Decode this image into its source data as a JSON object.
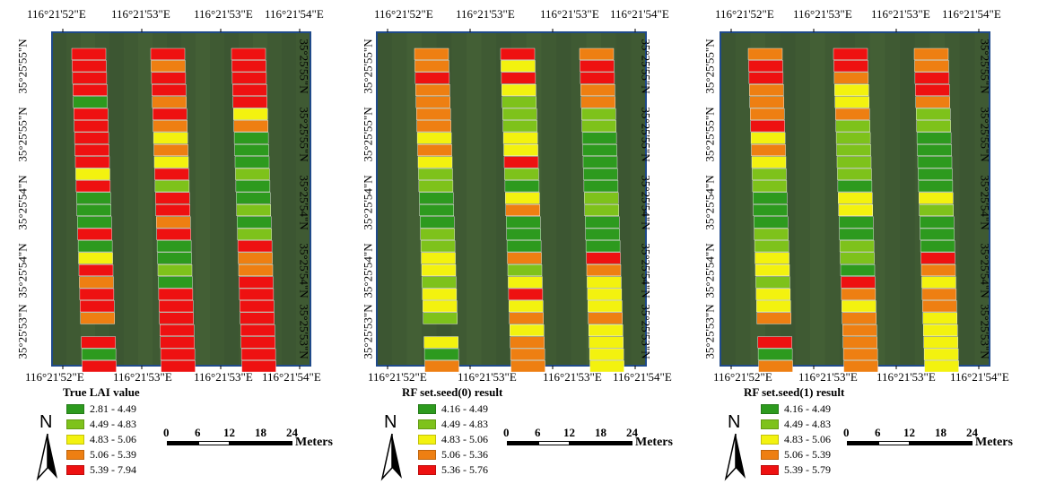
{
  "colors": {
    "green": "#2d9a1e",
    "lightgreen": "#7ec21b",
    "yellow": "#f3f20f",
    "orange": "#ee7f12",
    "red": "#ee1111",
    "background": "#3f5a33",
    "frame": "#1f4a8a"
  },
  "icons": {
    "north_arrow": "north-arrow-icon"
  },
  "panels": [
    {
      "caption": "True LAI value",
      "top_labels": [
        "116°21'52\"E",
        "116°21'53\"E",
        "116°21'53\"E",
        "116°21'54\"E"
      ],
      "bottom_labels": [
        "116°21'52\"E",
        "116°21'53\"E",
        "116°21'53\"E",
        "116°21'54\"E"
      ],
      "left_labels": [
        "35°25'55\"N",
        "35°25'55\"N",
        "35°25'54\"N",
        "35°25'54\"N",
        "35°25'53\"N"
      ],
      "right_labels": [
        "35°25'55\"N",
        "35°25'55\"N",
        "35°25'54\"N",
        "35°25'54\"N",
        "35°25'53\"N"
      ],
      "north_label": "N",
      "legend": [
        {
          "label": "2.81 - 4.49",
          "color": "green"
        },
        {
          "label": "4.49 - 4.83",
          "color": "lightgreen"
        },
        {
          "label": "4.83 - 5.06",
          "color": "yellow"
        },
        {
          "label": "5.06 - 5.39",
          "color": "orange"
        },
        {
          "label": "5.39 - 7.94",
          "color": "red"
        }
      ],
      "scale": {
        "ticks": [
          "0",
          "6",
          "12",
          "18",
          "24"
        ],
        "unit": "Meters"
      },
      "strips": [
        [
          "R",
          "R",
          "R",
          "R",
          "G",
          "R",
          "R",
          "R",
          "R",
          "R",
          "Y",
          "R",
          "G",
          "G",
          "G",
          "R",
          "G",
          "Y",
          "R",
          "O",
          "R",
          "R",
          "O",
          "",
          "R",
          "G",
          "R"
        ],
        [
          "R",
          "O",
          "R",
          "R",
          "O",
          "R",
          "O",
          "Y",
          "O",
          "Y",
          "R",
          "L",
          "R",
          "R",
          "O",
          "R",
          "G",
          "G",
          "L",
          "G",
          "R",
          "R",
          "R",
          "R",
          "R",
          "R",
          "R"
        ],
        [
          "R",
          "R",
          "R",
          "R",
          "R",
          "Y",
          "O",
          "G",
          "G",
          "G",
          "L",
          "G",
          "G",
          "L",
          "G",
          "L",
          "R",
          "O",
          "O",
          "R",
          "R",
          "R",
          "R",
          "R",
          "R",
          "R",
          "R"
        ]
      ]
    },
    {
      "caption": "RF set.seed(0) result",
      "top_labels": [
        "116°21'52\"E",
        "116°21'53\"E",
        "116°21'53\"E",
        "116°21'54\"E"
      ],
      "bottom_labels": [
        "116°21'52\"E",
        "116°21'53\"E",
        "116°21'53\"E",
        "116°21'54\"E"
      ],
      "left_labels": [
        "35°25'55\"N",
        "35°25'55\"N",
        "35°25'54\"N",
        "35°25'54\"N",
        "35°25'53\"N"
      ],
      "right_labels": [
        "35°25'55\"N",
        "35°25'55\"N",
        "35°25'54\"N",
        "35°25'54\"N",
        "35°25'53\"N"
      ],
      "north_label": "N",
      "legend": [
        {
          "label": "4.16 - 4.49",
          "color": "green"
        },
        {
          "label": "4.49 - 4.83",
          "color": "lightgreen"
        },
        {
          "label": "4.83 - 5.06",
          "color": "yellow"
        },
        {
          "label": "5.06 - 5.36",
          "color": "orange"
        },
        {
          "label": "5.36 - 5.76",
          "color": "red"
        }
      ],
      "scale": {
        "ticks": [
          "0",
          "6",
          "12",
          "18",
          "24"
        ],
        "unit": "Meters"
      },
      "strips": [
        [
          "O",
          "O",
          "R",
          "O",
          "O",
          "O",
          "O",
          "Y",
          "O",
          "Y",
          "L",
          "L",
          "G",
          "G",
          "G",
          "L",
          "L",
          "Y",
          "Y",
          "L",
          "Y",
          "Y",
          "L",
          "",
          "Y",
          "G",
          "O"
        ],
        [
          "R",
          "Y",
          "R",
          "Y",
          "L",
          "L",
          "L",
          "Y",
          "Y",
          "R",
          "L",
          "G",
          "Y",
          "O",
          "G",
          "G",
          "G",
          "O",
          "L",
          "Y",
          "R",
          "Y",
          "O",
          "Y",
          "O",
          "O",
          "O"
        ],
        [
          "O",
          "R",
          "R",
          "O",
          "O",
          "L",
          "L",
          "G",
          "G",
          "G",
          "G",
          "G",
          "L",
          "L",
          "G",
          "G",
          "G",
          "R",
          "O",
          "Y",
          "Y",
          "Y",
          "O",
          "Y",
          "Y",
          "Y",
          "Y"
        ]
      ]
    },
    {
      "caption": "RF set.seed(1) result",
      "top_labels": [
        "116°21'52\"E",
        "116°21'53\"E",
        "116°21'53\"E",
        "116°21'54\"E"
      ],
      "bottom_labels": [
        "116°21'52\"E",
        "116°21'53\"E",
        "116°21'53\"E",
        "116°21'54\"E"
      ],
      "left_labels": [
        "35°25'55\"N",
        "35°25'55\"N",
        "35°25'54\"N",
        "35°25'54\"N",
        "35°25'53\"N"
      ],
      "right_labels": [
        "35°25'55\"N",
        "35°25'55\"N",
        "35°25'54\"N",
        "35°25'54\"N",
        "35°25'53\"N"
      ],
      "north_label": "N",
      "legend": [
        {
          "label": "4.16 - 4.49",
          "color": "green"
        },
        {
          "label": "4.49 - 4.83",
          "color": "lightgreen"
        },
        {
          "label": "4.83 - 5.06",
          "color": "yellow"
        },
        {
          "label": "5.06 - 5.39",
          "color": "orange"
        },
        {
          "label": "5.39 - 5.79",
          "color": "red"
        }
      ],
      "scale": {
        "ticks": [
          "0",
          "6",
          "12",
          "18",
          "24"
        ],
        "unit": "Meters"
      },
      "strips": [
        [
          "O",
          "R",
          "R",
          "O",
          "O",
          "O",
          "R",
          "Y",
          "O",
          "Y",
          "L",
          "L",
          "G",
          "G",
          "G",
          "L",
          "L",
          "Y",
          "Y",
          "L",
          "Y",
          "Y",
          "O",
          "",
          "R",
          "G",
          "O"
        ],
        [
          "R",
          "R",
          "O",
          "Y",
          "Y",
          "O",
          "L",
          "L",
          "L",
          "L",
          "L",
          "G",
          "Y",
          "Y",
          "G",
          "G",
          "L",
          "L",
          "G",
          "R",
          "O",
          "Y",
          "O",
          "O",
          "O",
          "O",
          "O"
        ],
        [
          "O",
          "O",
          "R",
          "R",
          "O",
          "L",
          "L",
          "G",
          "G",
          "G",
          "G",
          "G",
          "Y",
          "L",
          "G",
          "G",
          "G",
          "R",
          "O",
          "Y",
          "O",
          "O",
          "Y",
          "Y",
          "Y",
          "Y",
          "Y"
        ]
      ]
    }
  ]
}
